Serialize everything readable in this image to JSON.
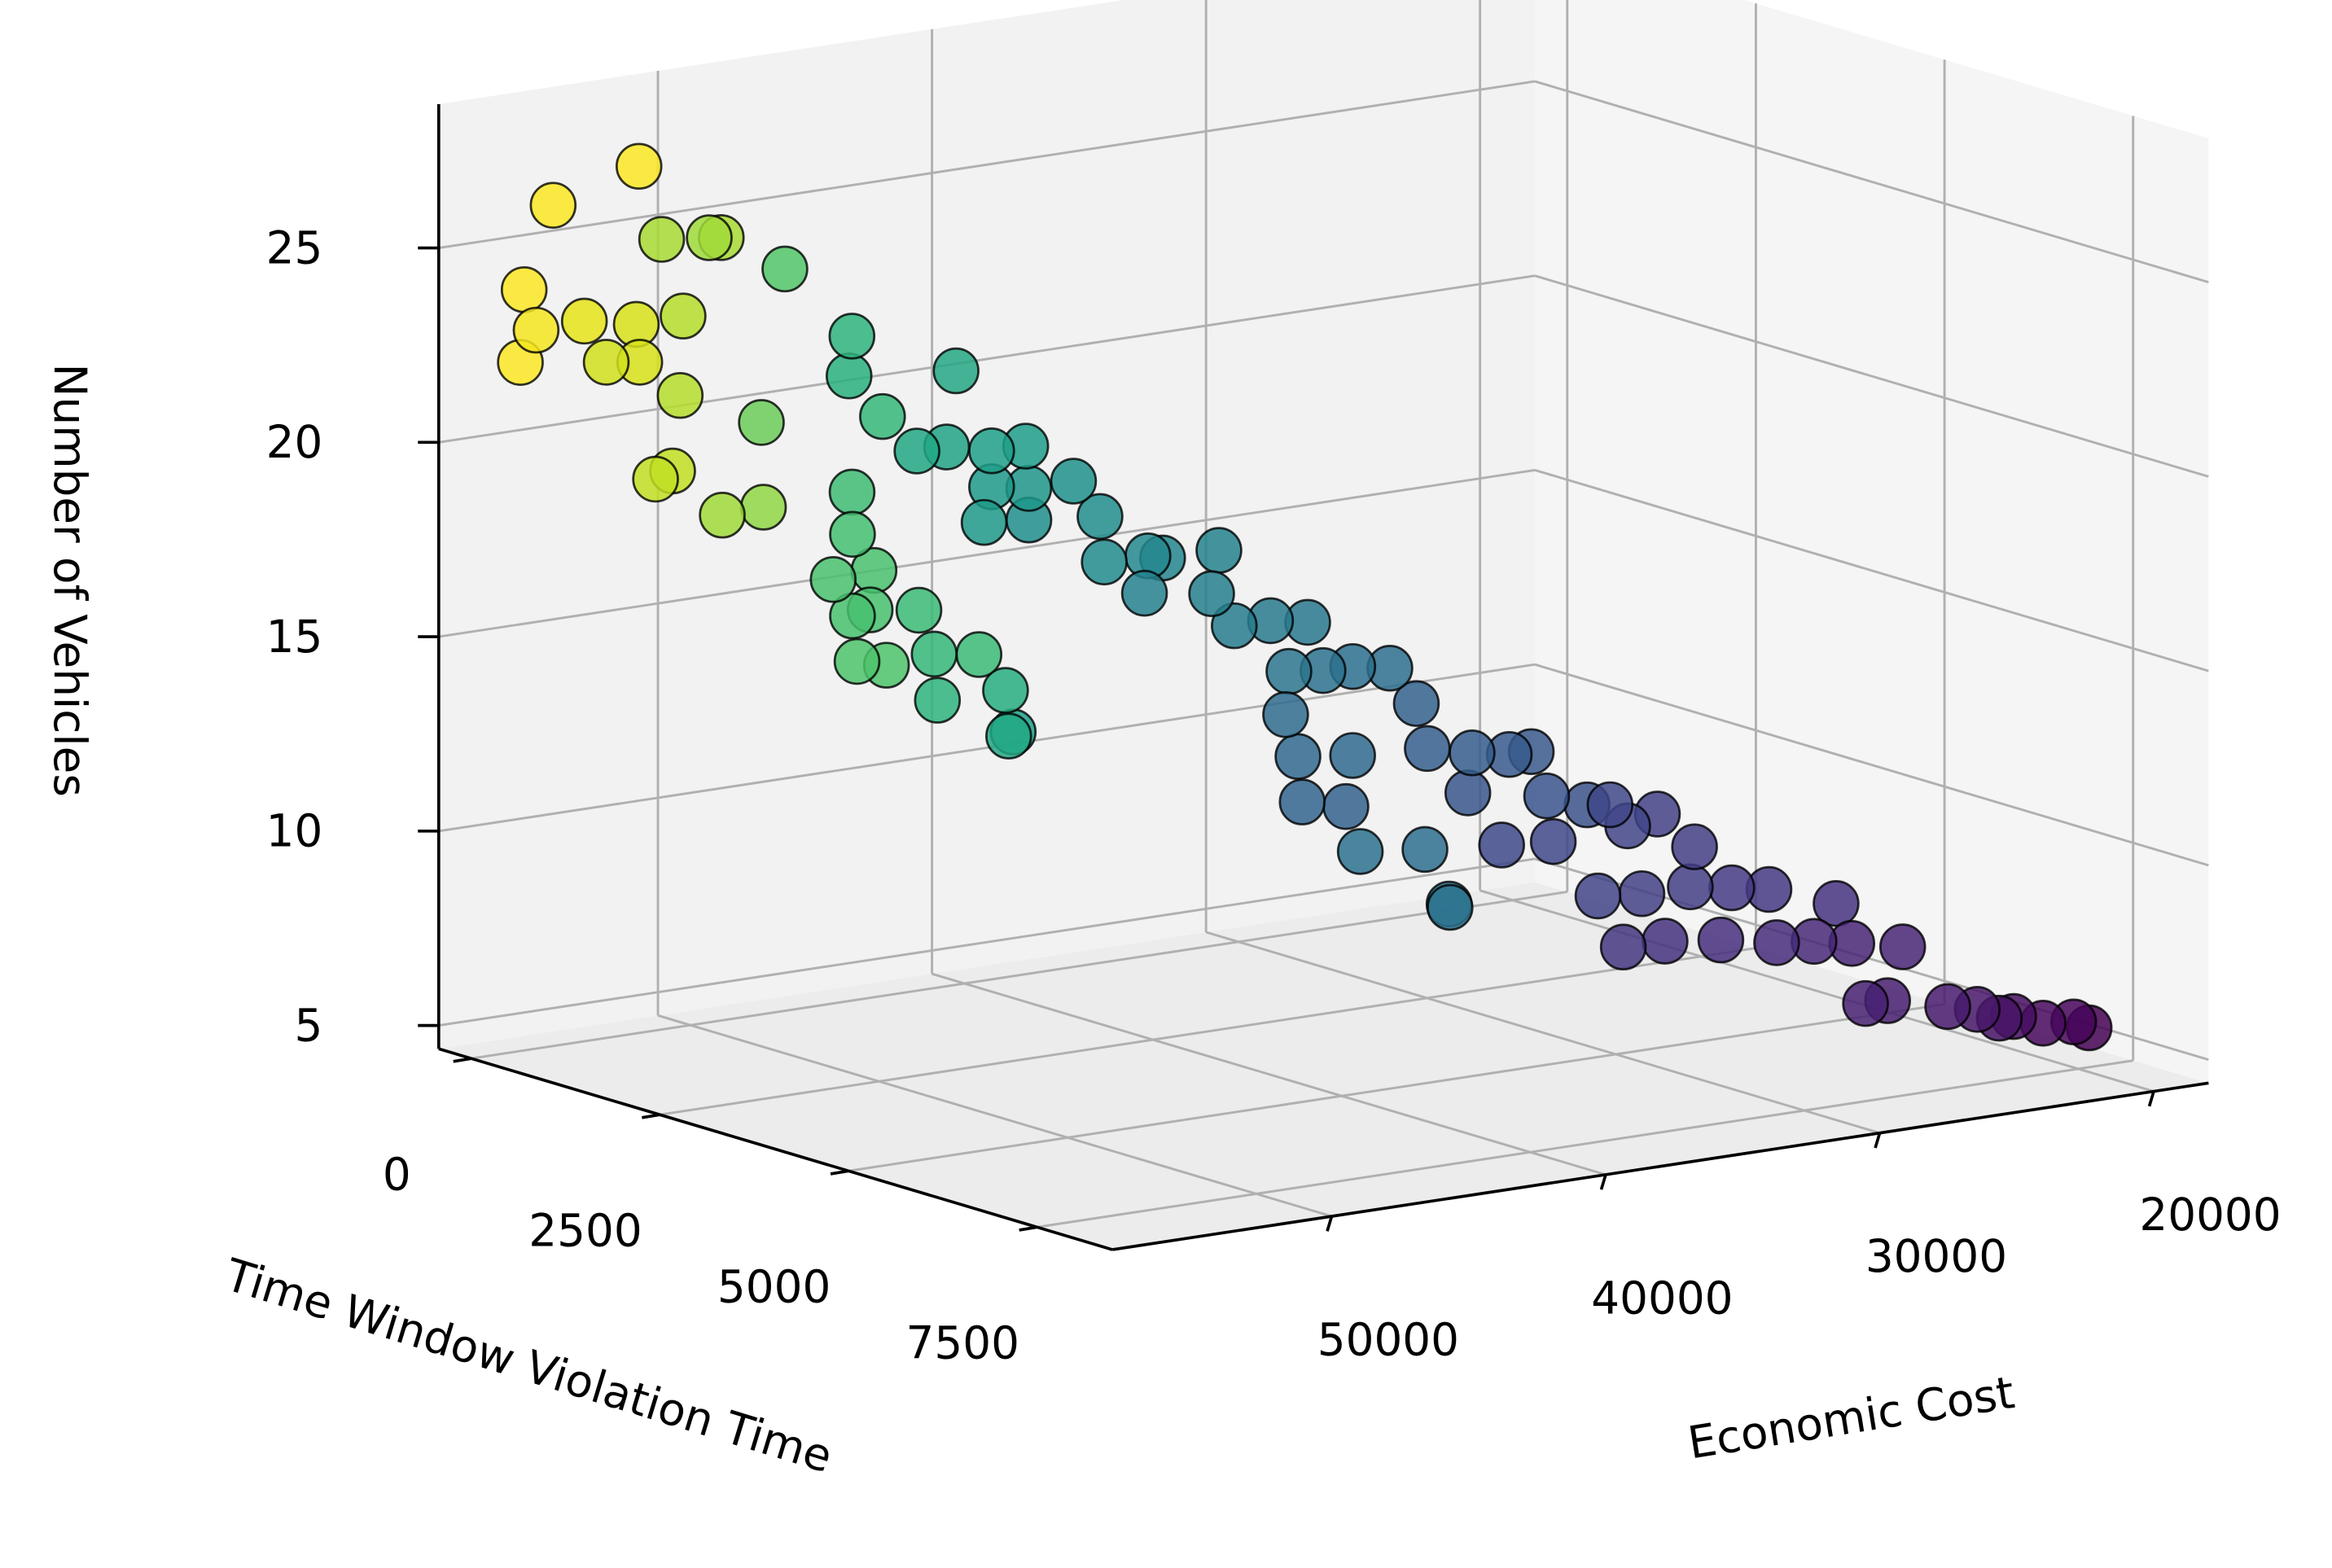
{
  "chart_data": {
    "type": "scatter3d",
    "xlabel": "Economic Cost",
    "ylabel": "Time Window Violation Time",
    "zlabel": "Number of Vehicles",
    "xlim": [
      18000,
      58000
    ],
    "ylim": [
      -430,
      8500
    ],
    "zlim": [
      4.4,
      28.7
    ],
    "xticks": [
      20000,
      30000,
      40000,
      50000
    ],
    "yticks": [
      0,
      2500,
      5000,
      7500
    ],
    "zticks": [
      5,
      10,
      15,
      20,
      25
    ],
    "grid": true,
    "x": [
      55560,
      52840,
      56480,
      56320,
      56480,
      54420,
      52800,
      53760,
      52950,
      51600,
      50000,
      49700,
      50680,
      51200,
      51960,
      51200,
      49800,
      48160,
      47960,
      47240,
      52640,
      52470,
      51800,
      48840,
      52360,
      52620,
      53600,
      51560,
      52620,
      51700,
      52730,
      51380,
      49920,
      49640,
      48280,
      49520,
      46760,
      46920,
      46480,
      56600,
      55240,
      54150,
      52630,
      53600,
      52520,
      51160,
      54150,
      52240,
      49920,
      50040,
      48170,
      47360,
      49160,
      51600,
      49700,
      48600,
      47000,
      45920,
      46880,
      45360,
      44000,
      42920,
      47000,
      44280,
      46000,
      46120,
      44800,
      44000,
      41680,
      41640,
      41000,
      40760,
      41280,
      39920,
      38840,
      37760,
      39800,
      37200,
      36000,
      41320,
      39160,
      37640,
      36720,
      35360,
      34280,
      38080,
      36200,
      34160,
      32920,
      31840,
      36880,
      35080,
      33320,
      31560,
      29920,
      28840,
      28540,
      26960,
      28040,
      26960,
      25040,
      24240,
      23160,
      22360,
      21560,
      20720,
      19880
    ],
    "y": [
      200,
      350,
      150,
      250,
      100,
      200,
      300,
      250,
      400,
      200,
      250,
      300,
      150,
      300,
      250,
      200,
      350,
      300,
      200,
      250,
      3100,
      3000,
      3200,
      3100,
      3000,
      3100,
      3200,
      3000,
      3100,
      3000,
      3200,
      3100,
      3000,
      3100,
      3200,
      3100,
      3000,
      3100,
      3000,
      5400,
      5300,
      5500,
      5400,
      5300,
      5400,
      5500,
      5400,
      5300,
      5400,
      5500,
      5400,
      5300,
      6700,
      6600,
      6800,
      6700,
      6600,
      6700,
      6800,
      6700,
      6600,
      6700,
      6800,
      6700,
      6600,
      6700,
      6800,
      6700,
      6600,
      6700,
      6800,
      6700,
      6600,
      6700,
      6800,
      6700,
      6600,
      6700,
      6800,
      7600,
      7500,
      7700,
      7600,
      7500,
      7600,
      7700,
      7600,
      7500,
      7600,
      7700,
      7600,
      7500,
      7600,
      7700,
      7600,
      7500,
      7600,
      7700,
      7600,
      7500,
      7600,
      7700,
      7600,
      7500,
      7600,
      7700,
      7600
    ],
    "z": [
      26.2,
      27.0,
      24.1,
      23.1,
      22.2,
      23.1,
      22.9,
      22.0,
      22.0,
      24.9,
      24.8,
      24.8,
      22.8,
      20.9,
      18.8,
      18.9,
      17.7,
      17.7,
      19.8,
      23.7,
      24.2,
      23.1,
      22.1,
      22.9,
      20.1,
      19.1,
      18.1,
      18.0,
      17.0,
      17.0,
      15.9,
      15.6,
      16.8,
      15.7,
      15.6,
      14.5,
      14.4,
      13.3,
      13.3,
      23.0,
      22.9,
      22.8,
      22.7,
      21.7,
      21.6,
      21.7,
      20.9,
      20.7,
      20.6,
      19.5,
      19.4,
      19.2,
      20.4,
      19.5,
      19.4,
      18.4,
      18.3,
      18.2,
      17.1,
      16.9,
      16.8,
      16.7,
      16.0,
      14.6,
      14.7,
      13.6,
      13.4,
      12.1,
      15.6,
      11.9,
      10.4,
      10.4,
      14.4,
      14.2,
      14.1,
      14.0,
      13.1,
      12.8,
      12.5,
      12.5,
      12.3,
      13.2,
      12.5,
      12.6,
      11.7,
      10.9,
      10.7,
      10.6,
      10.5,
      10.4,
      9.4,
      9.3,
      9.2,
      9.0,
      8.8,
      9.6,
      8.6,
      8.4,
      7.0,
      6.9,
      6.6,
      6.5,
      6.1,
      6.0,
      5.8,
      5.8,
      5.5
    ],
    "colors": [
      "#fde725",
      "#fde725",
      "#fde725",
      "#f4e61e",
      "#fde725",
      "#e5e419",
      "#d8e219",
      "#d0e11c",
      "#d8e219",
      "#a8db34",
      "#a0da39",
      "#a8db34",
      "#b5de2b",
      "#b5de2b",
      "#c2df23",
      "#c2df23",
      "#a0da39",
      "#8fd744",
      "#6ccd5a",
      "#52c569",
      "#2fb47c",
      "#2ab07f",
      "#35b779",
      "#26a784",
      "#3fbc73",
      "#44bf70",
      "#4ac16d",
      "#4ac16d",
      "#48c16e",
      "#48c16e",
      "#4ec36b",
      "#4ec36b",
      "#3bbb75",
      "#35b779",
      "#3bbb75",
      "#2fb47c",
      "#28ae80",
      "#22a884",
      "#1fa088",
      "#22a884",
      "#21a386",
      "#1fa088",
      "#1f9e89",
      "#1f9a8a",
      "#1f968b",
      "#20928c",
      "#1f9a8a",
      "#208f8c",
      "#218e8d",
      "#228b8d",
      "#23888e",
      "#24868e",
      "#25838e",
      "#26818e",
      "#277f8e",
      "#287c8e",
      "#297a8e",
      "#2a788e",
      "#2b758e",
      "#2c728e",
      "#2d708e",
      "#2e6e8e",
      "#2f6c8e",
      "#306a8e",
      "#31688e",
      "#32658e",
      "#33638d",
      "#2c728e",
      "#34618d",
      "#2e6e8e",
      "#2c728e",
      "#2c728e",
      "#355f8d",
      "#365d8d",
      "#375b8d",
      "#38598c",
      "#39568c",
      "#3a548c",
      "#3b528b",
      "#3e4989",
      "#3f4788",
      "#404688",
      "#414487",
      "#424186",
      "#433e85",
      "#414487",
      "#424186",
      "#433e85",
      "#443b84",
      "#453882",
      "#453781",
      "#46337f",
      "#472f7d",
      "#472d7b",
      "#482878",
      "#46337f",
      "#482576",
      "#482475",
      "#482173",
      "#481f70",
      "#481b6d",
      "#481769",
      "#471365",
      "#470e61",
      "#46085c",
      "#450559",
      "#440154"
    ]
  }
}
